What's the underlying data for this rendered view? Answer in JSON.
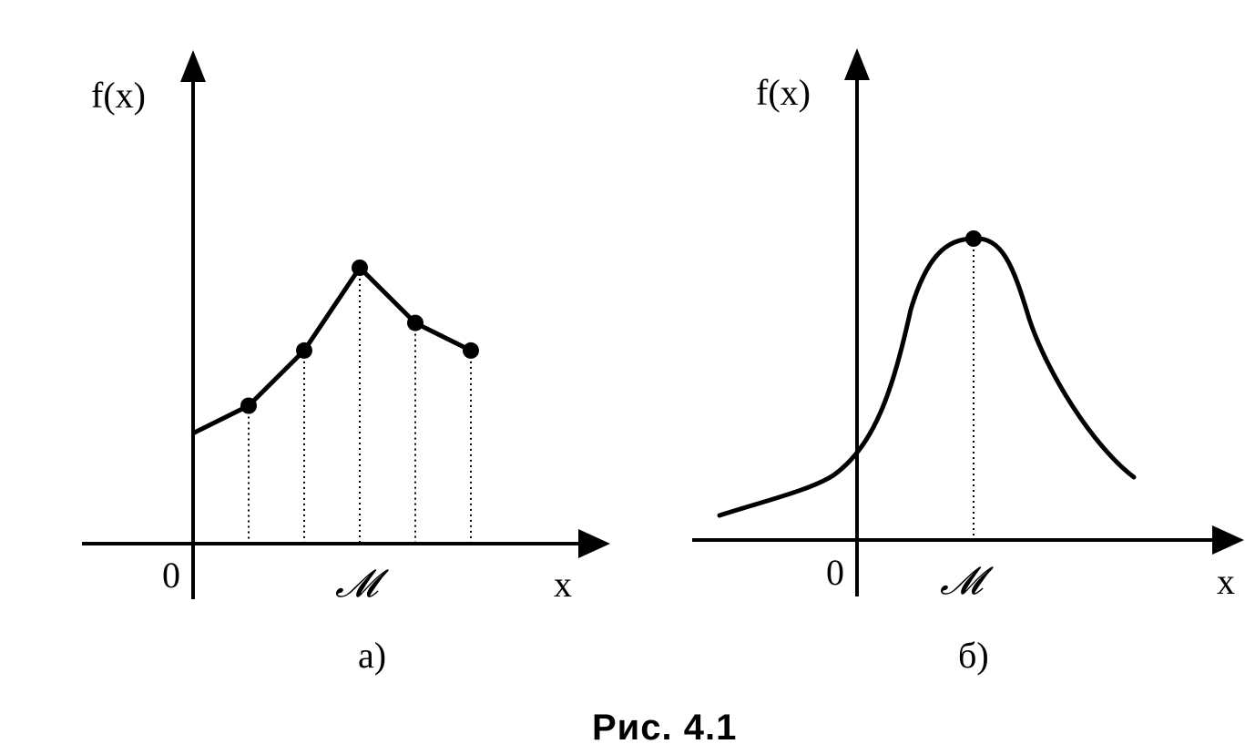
{
  "figure": {
    "caption": "Рис. 4.1"
  },
  "panel_a": {
    "label": "а)",
    "y_axis_label": "f(x)",
    "x_axis_label": "x",
    "origin_label": "0",
    "mode_label": "𝓜",
    "type": "discrete",
    "points": [
      {
        "x": 0,
        "y": 1.2
      },
      {
        "x": 1,
        "y": 1.5
      },
      {
        "x": 2,
        "y": 2.1
      },
      {
        "x": 3,
        "y": 3.0
      },
      {
        "x": 4,
        "y": 2.4
      },
      {
        "x": 5,
        "y": 2.1
      }
    ],
    "marked_points": [
      1,
      2,
      3,
      4,
      5
    ],
    "mode_index": 3
  },
  "panel_b": {
    "label": "б)",
    "y_axis_label": "f(x)",
    "x_axis_label": "x",
    "origin_label": "0",
    "mode_label": "𝓜",
    "type": "continuous"
  },
  "colors": {
    "ink": "#000000",
    "background": "#ffffff"
  }
}
